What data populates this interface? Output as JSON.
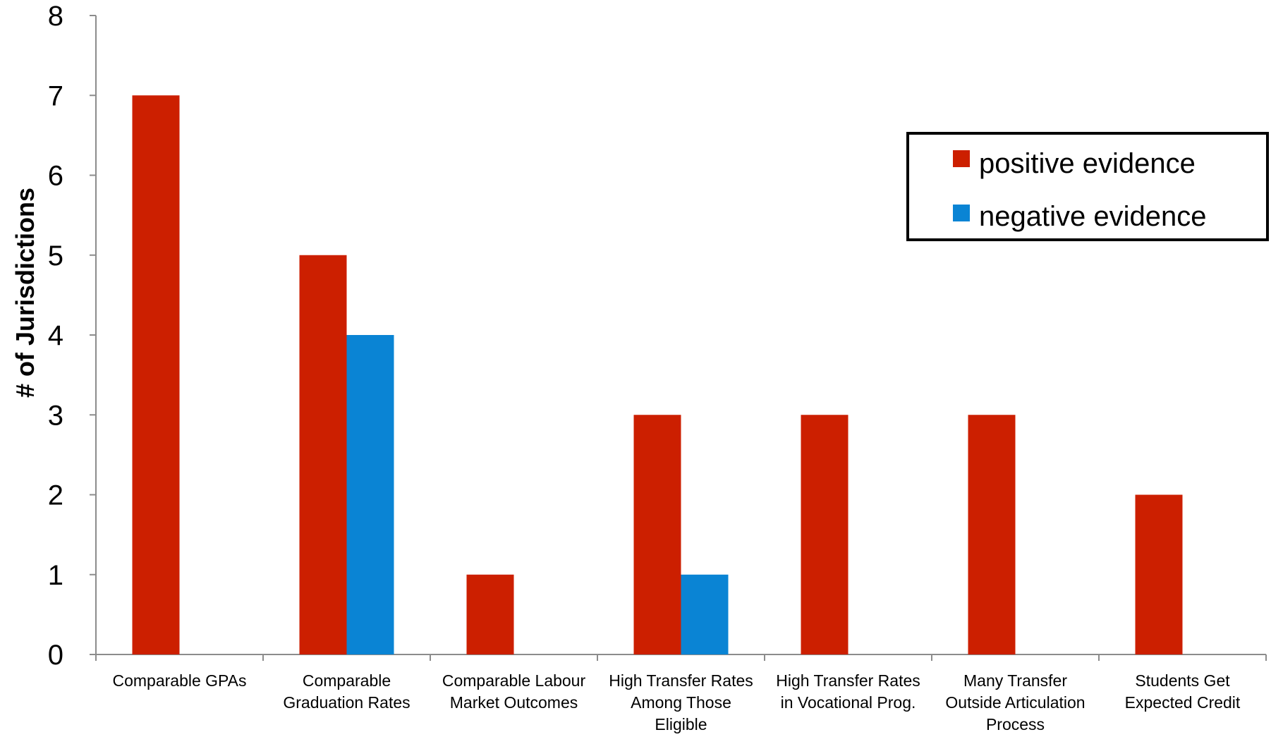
{
  "chart_data": {
    "type": "bar",
    "ylabel": "# of Jurisdictions",
    "xlabel": "",
    "ylim": [
      0,
      8
    ],
    "yticks": [
      "0",
      "1",
      "2",
      "3",
      "4",
      "5",
      "6",
      "7",
      "8"
    ],
    "grid": false,
    "legend_position": "top-right",
    "categories": [
      [
        "Comparable GPAs"
      ],
      [
        "Comparable",
        "Graduation Rates"
      ],
      [
        "Comparable Labour",
        "Market Outcomes"
      ],
      [
        "High Transfer Rates",
        "Among Those",
        "Eligible"
      ],
      [
        "High Transfer Rates",
        "in Vocational Prog."
      ],
      [
        "Many Transfer",
        "Outside Articulation",
        "Process"
      ],
      [
        "Students Get",
        "Expected Credit"
      ]
    ],
    "series": [
      {
        "name": "positive evidence",
        "color": "#cc1f00",
        "values": [
          7,
          5,
          1,
          3,
          3,
          3,
          2
        ]
      },
      {
        "name": "negative evidence",
        "color": "#0a84d4",
        "values": [
          0,
          4,
          0,
          1,
          0,
          0,
          0
        ]
      }
    ]
  }
}
